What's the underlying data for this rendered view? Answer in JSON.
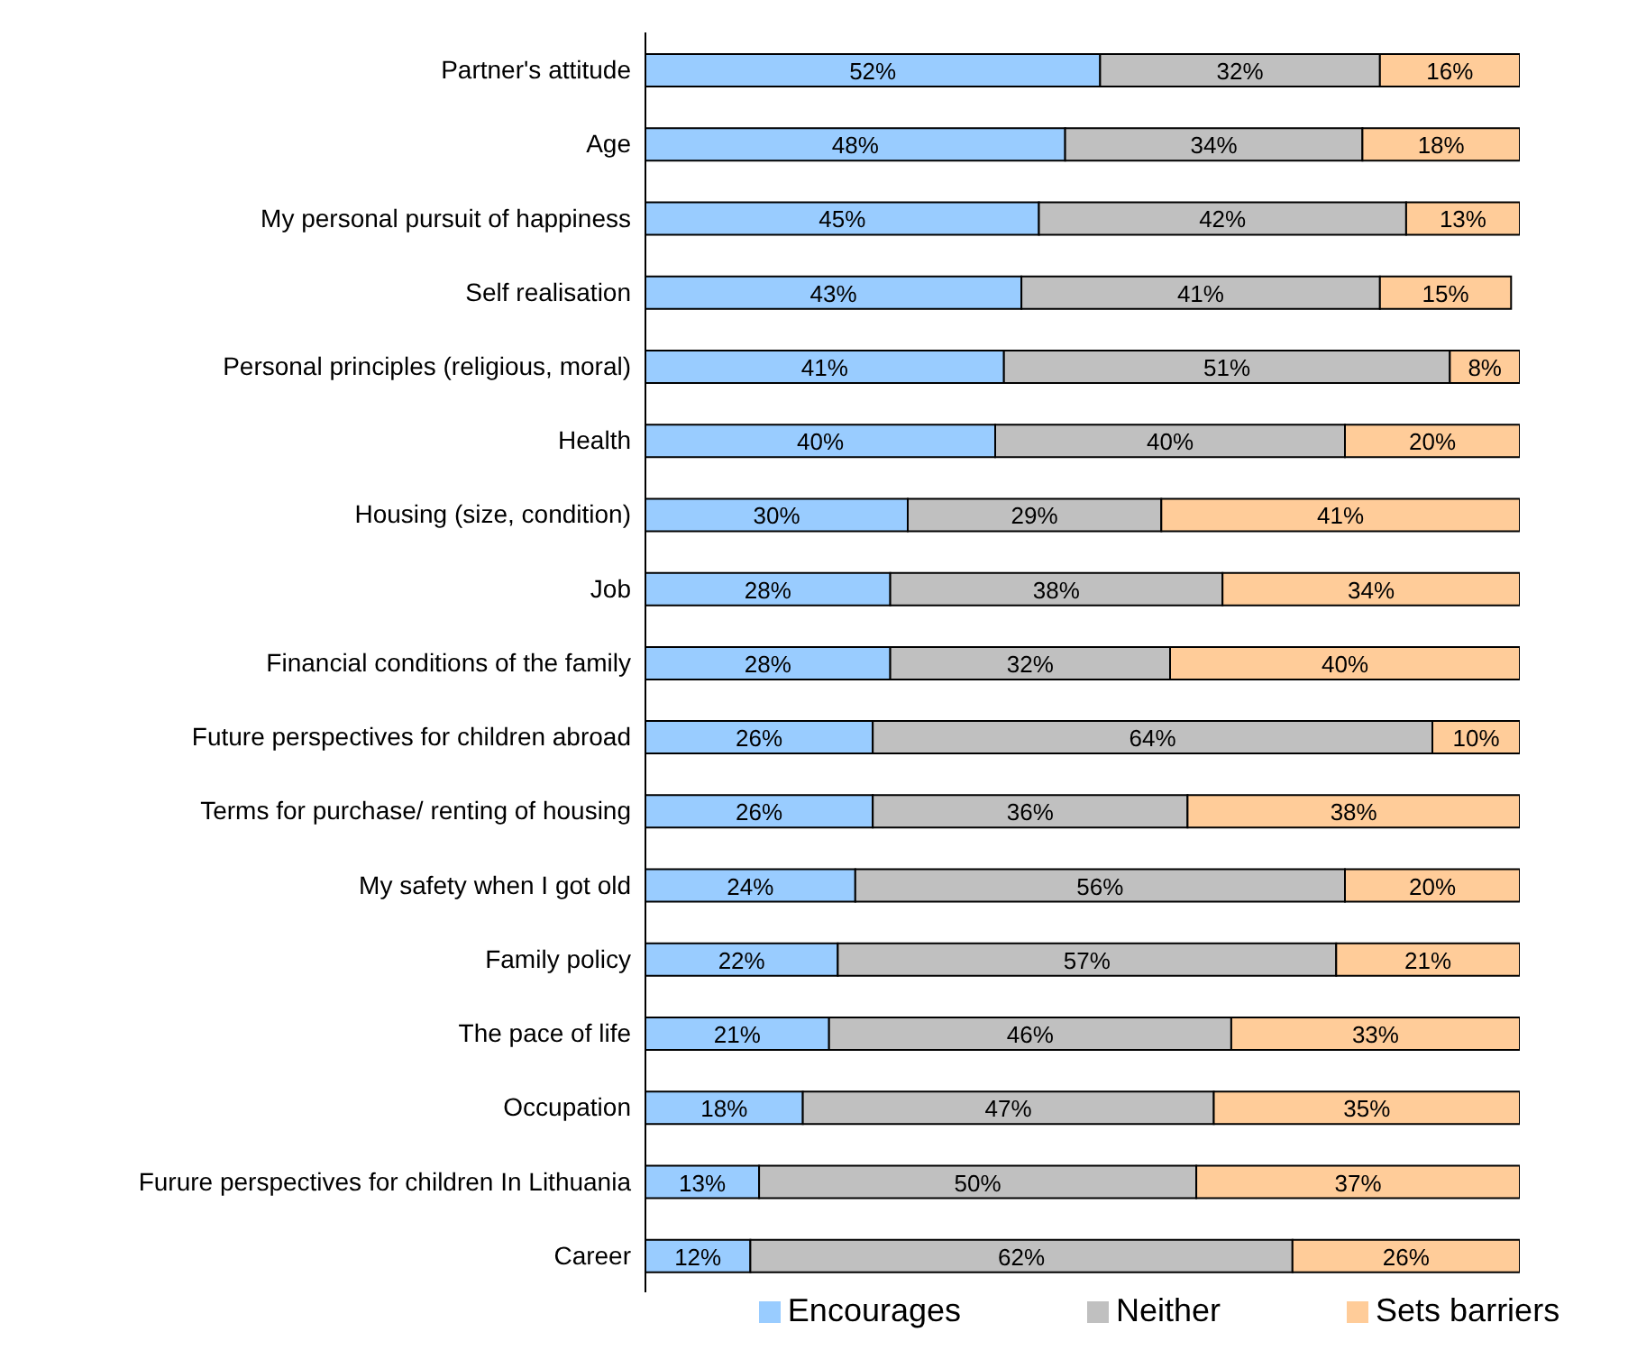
{
  "chart_data": {
    "type": "bar",
    "orientation": "horizontal",
    "stacked": true,
    "legend": "bottom",
    "categories": [
      "Partner's attitude",
      "Age",
      "My personal pursuit of happiness",
      "Self realisation",
      "Personal principles (religious, moral)",
      "Health",
      "Housing (size, condition)",
      "Job",
      "Financial conditions of the family",
      "Future perspectives for children abroad",
      "Terms for purchase/ renting of housing",
      "My safety when I got old",
      "Family policy",
      "The pace of life",
      "Occupation",
      "Furure perspectives for children In Lithuania",
      "Career"
    ],
    "series": [
      {
        "name": "Encourages",
        "color": "#99ccff",
        "values": [
          52,
          48,
          45,
          43,
          41,
          40,
          30,
          28,
          28,
          26,
          26,
          24,
          22,
          21,
          18,
          13,
          12
        ],
        "value_labels": [
          "52%",
          "48%",
          "45%",
          "43%",
          "41%",
          "40%",
          "30%",
          "28%",
          "28%",
          "26%",
          "26%",
          "24%",
          "22%",
          "21%",
          "18%",
          "13%",
          "12%"
        ]
      },
      {
        "name": "Neither",
        "color": "#c0c0c0",
        "values": [
          32,
          34,
          42,
          41,
          51,
          40,
          29,
          38,
          32,
          64,
          36,
          56,
          57,
          46,
          47,
          50,
          62
        ],
        "value_labels": [
          "32%",
          "34%",
          "42%",
          "41%",
          "51%",
          "40%",
          "29%",
          "38%",
          "32%",
          "64%",
          "36%",
          "56%",
          "57%",
          "46%",
          "47%",
          "50%",
          "62%"
        ]
      },
      {
        "name": "Sets barriers",
        "color": "#ffcc99",
        "values": [
          16,
          18,
          13,
          15,
          8,
          20,
          41,
          34,
          40,
          10,
          38,
          20,
          21,
          33,
          35,
          37,
          26
        ],
        "value_labels": [
          "16%",
          "18%",
          "13%",
          "15%",
          "8%",
          "20%",
          "41%",
          "34%",
          "40%",
          "10%",
          "38%",
          "20%",
          "21%",
          "33%",
          "35%",
          "37%",
          "26%"
        ]
      }
    ]
  }
}
